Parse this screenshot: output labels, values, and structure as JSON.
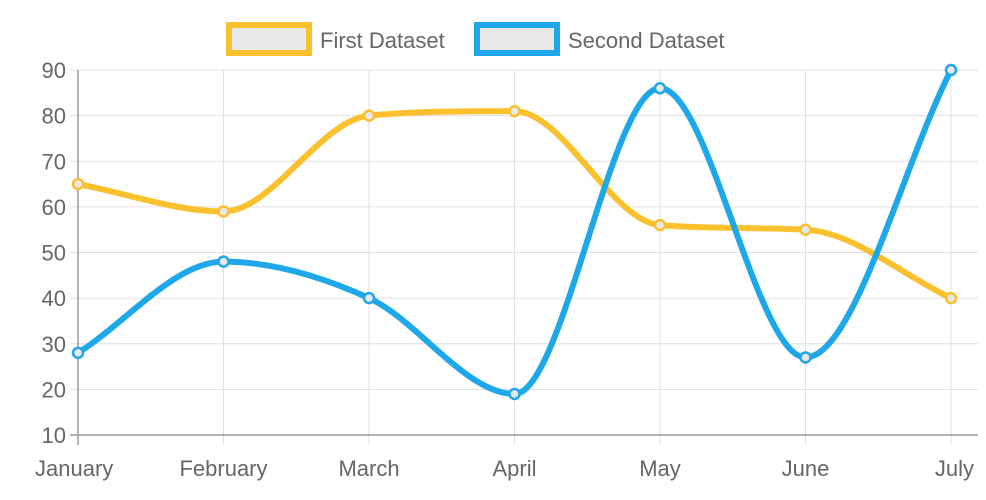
{
  "chart_data": {
    "type": "line",
    "title": "",
    "xlabel": "",
    "ylabel": "",
    "categories": [
      "January",
      "February",
      "March",
      "April",
      "May",
      "June",
      "July"
    ],
    "ylim": [
      10,
      90
    ],
    "yticks": [
      10,
      20,
      30,
      40,
      50,
      60,
      70,
      80,
      90
    ],
    "grid": true,
    "legend_position": "top-center",
    "series": [
      {
        "name": "First Dataset",
        "color": "#fbc02d",
        "fill": "#e8e8e8",
        "values": [
          65,
          59,
          80,
          81,
          56,
          55,
          40
        ]
      },
      {
        "name": "Second Dataset",
        "color": "#1ea7e9",
        "fill": "#e8e8e8",
        "values": [
          28,
          48,
          40,
          19,
          86,
          27,
          90
        ]
      }
    ]
  }
}
